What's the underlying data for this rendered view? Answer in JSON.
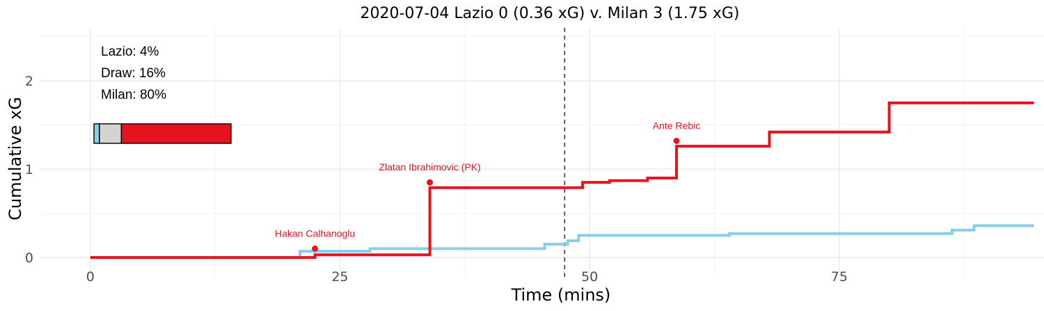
{
  "chart_data": {
    "type": "line",
    "title": "2020-07-04 Lazio 0 (0.36 xG) v. Milan 3 (1.75 xG)",
    "xlabel": "Time (mins)",
    "ylabel": "Cumulative xG",
    "xlim": [
      -5,
      95.5
    ],
    "ylim": [
      -0.22,
      2.6
    ],
    "x_ticks": [
      0,
      25,
      50,
      75
    ],
    "y_ticks": [
      0,
      1,
      2
    ],
    "grid": true,
    "halftime_minute": 47.5,
    "colors": {
      "Lazio": "#87CEEB",
      "Milan": "#E8121E",
      "Draw": "#D3D3D3"
    },
    "series": [
      {
        "name": "Lazio",
        "color": "#87CEEB",
        "x": [
          0,
          21,
          28,
          45.5,
          47.8,
          48.9,
          64,
          86.3,
          88.5,
          94.5
        ],
        "y": [
          0,
          0.07,
          0.1,
          0.15,
          0.19,
          0.25,
          0.27,
          0.31,
          0.36,
          0.36
        ]
      },
      {
        "name": "Milan",
        "color": "#E8121E",
        "x": [
          0,
          22.5,
          34,
          49.3,
          52,
          55.8,
          58.7,
          68,
          80,
          94.5
        ],
        "y": [
          0,
          0.03,
          0.79,
          0.85,
          0.87,
          0.9,
          1.26,
          1.42,
          1.75,
          1.75
        ]
      }
    ],
    "goals": [
      {
        "label": "Hakan Calhanoglu",
        "x": 22.5,
        "y": 0.1,
        "team": "Milan"
      },
      {
        "label": "Zlatan Ibrahimovic (PK)",
        "x": 34,
        "y": 0.85,
        "team": "Milan"
      },
      {
        "label": "Ante Rebic",
        "x": 58.7,
        "y": 1.32,
        "team": "Milan"
      }
    ],
    "probabilities": [
      {
        "label": "Lazio: 4%",
        "team": "Lazio",
        "value": 0.04
      },
      {
        "label": "Draw: 16%",
        "team": "Draw",
        "value": 0.16
      },
      {
        "label": "Milan: 80%",
        "team": "Milan",
        "value": 0.8
      }
    ]
  }
}
